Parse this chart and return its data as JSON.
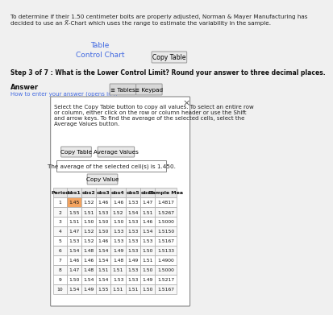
{
  "title_text": "To determine if their 1.50 centimeter bolts are properly adjusted, Norman & Mayer Manufacturing has\ndecided to use an X̅-Chart which uses the range to estimate the variability in the sample.",
  "link1": "Table",
  "link2": "Control Chart",
  "copy_table_btn": "Copy Table",
  "step_text": "Step 3 of 7 : What is the Lower Control Limit? Round your answer to three decimal places.",
  "answer_label": "Answer",
  "answer_sub": "How to enter your answer (opens in n",
  "tabs_label1": "Tables",
  "tabs_label2": "Keypad",
  "close_x": "×",
  "popup_text": "Select the Copy Table button to copy all values. To select an entire row\nor column, either click on the row or column header or use the Shift\nand arrow keys. To find the average of the selected cells, select the\nAverage Values button.",
  "btn1": "Copy Table",
  "btn2": "Average Values",
  "avg_text": "The average of the selected cell(s) is 1.450.",
  "copy_val_btn": "Copy Value",
  "headers": [
    "Period",
    "obs1",
    "obs2",
    "obs3",
    "obs4",
    "obs5",
    "obs6",
    "Sample Mea"
  ],
  "table_data": [
    [
      1,
      1.45,
      1.52,
      1.46,
      1.46,
      1.53,
      1.47,
      1.4817
    ],
    [
      2,
      1.55,
      1.51,
      1.53,
      1.52,
      1.54,
      1.51,
      1.5267
    ],
    [
      3,
      1.51,
      1.5,
      1.5,
      1.5,
      1.53,
      1.46,
      1.5
    ],
    [
      4,
      1.47,
      1.52,
      1.5,
      1.53,
      1.53,
      1.54,
      1.515
    ],
    [
      5,
      1.53,
      1.52,
      1.46,
      1.53,
      1.53,
      1.53,
      1.5167
    ],
    [
      6,
      1.54,
      1.48,
      1.54,
      1.49,
      1.53,
      1.5,
      1.5133
    ],
    [
      7,
      1.46,
      1.46,
      1.54,
      1.48,
      1.49,
      1.51,
      1.49
    ],
    [
      8,
      1.47,
      1.48,
      1.51,
      1.51,
      1.53,
      1.5,
      1.5
    ],
    [
      9,
      1.5,
      1.54,
      1.54,
      1.53,
      1.53,
      1.49,
      1.5217
    ],
    [
      10,
      1.54,
      1.49,
      1.55,
      1.51,
      1.51,
      1.5,
      1.5167
    ]
  ],
  "highlight_cell": [
    0,
    1
  ],
  "highlight_color": "#f4a460",
  "bg_color": "#f0f0f0",
  "popup_bg": "#ffffff",
  "border_color": "#aaaaaa",
  "header_bg": "#e8e8e8",
  "btn_bg": "#e0e0e0",
  "link_color": "#4169e1",
  "tab_active_bg": "#e8e8e8",
  "row_alt_bg": "#f8f8f8"
}
